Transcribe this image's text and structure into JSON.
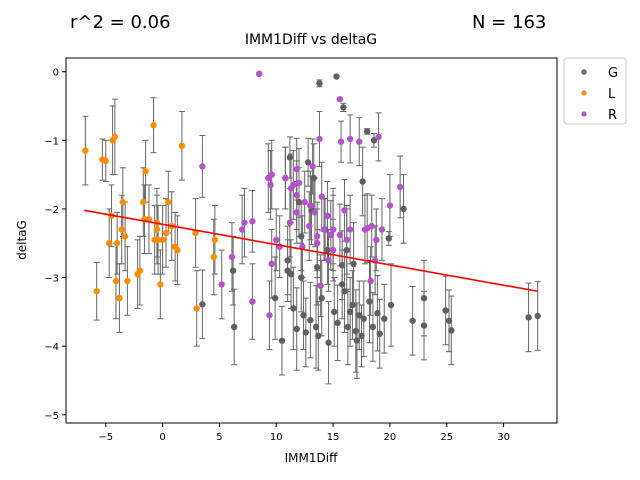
{
  "header": {
    "r2": "r^2 = 0.06",
    "n": "N = 163"
  },
  "chart_data": {
    "type": "scatter",
    "title": "IMM1Diff vs deltaG",
    "xlabel": "IMM1Diff",
    "ylabel": "deltaG",
    "xlim": [
      -8.5,
      34.7
    ],
    "ylim": [
      -5.12,
      0.2
    ],
    "xticks": [
      -5,
      0,
      5,
      10,
      15,
      20,
      25,
      30
    ],
    "yticks": [
      0,
      -1,
      -2,
      -3,
      -4,
      -5
    ],
    "grid": false,
    "legend_position": "outside-right",
    "colors": {
      "G": "#5f5f5f",
      "L": "#ff8c00",
      "R": "#b452cd",
      "fit": "#ff0000",
      "errorbar": "#666666"
    },
    "fit_line": {
      "x": [
        -6.9,
        33.0
      ],
      "y": [
        -2.02,
        -3.2
      ]
    },
    "series": [
      {
        "name": "G",
        "points": [
          [
            8.5,
            -0.03,
            0
          ],
          [
            13.8,
            -0.17,
            0.05
          ],
          [
            15.3,
            -0.07,
            0
          ],
          [
            15.9,
            -0.52,
            0.06
          ],
          [
            18.0,
            -0.87,
            0.04
          ],
          [
            18.6,
            -1.0,
            0.1
          ],
          [
            11.2,
            -1.25,
            0.3
          ],
          [
            12.8,
            -1.32,
            0.35
          ],
          [
            13.3,
            -1.55,
            0.5
          ],
          [
            10.8,
            -1.55,
            0.45
          ],
          [
            17.6,
            -1.6,
            0.5
          ],
          [
            12.0,
            -1.9,
            0.5
          ],
          [
            13.1,
            -2.02,
            0.5
          ],
          [
            19.9,
            -2.43,
            0.1
          ],
          [
            21.2,
            -2.0,
            0.5
          ],
          [
            15.0,
            -2.3,
            0.6
          ],
          [
            16.2,
            -2.6,
            0.6
          ],
          [
            12.2,
            -2.4,
            0.5
          ],
          [
            14.5,
            -2.6,
            0.5
          ],
          [
            11.0,
            -2.75,
            0.5
          ],
          [
            16.8,
            -2.8,
            0.6
          ],
          [
            15.8,
            -2.82,
            0.5
          ],
          [
            13.6,
            -2.85,
            0.55
          ],
          [
            11.3,
            -2.95,
            0.5
          ],
          [
            6.2,
            -2.9,
            0.5
          ],
          [
            3.5,
            -3.39,
            0.5
          ],
          [
            6.3,
            -3.72,
            0.55
          ],
          [
            9.9,
            -3.3,
            0.6
          ],
          [
            10.5,
            -3.92,
            0.5
          ],
          [
            11.5,
            -3.45,
            0.6
          ],
          [
            12.4,
            -3.55,
            0.5
          ],
          [
            13.0,
            -3.62,
            0.55
          ],
          [
            13.5,
            -3.72,
            0.6
          ],
          [
            14.0,
            -3.3,
            0.55
          ],
          [
            14.6,
            -3.95,
            0.6
          ],
          [
            15.1,
            -3.5,
            0.5
          ],
          [
            15.4,
            -3.66,
            0.55
          ],
          [
            16.0,
            -3.2,
            0.6
          ],
          [
            16.3,
            -3.72,
            0.55
          ],
          [
            16.7,
            -3.4,
            0.5
          ],
          [
            17.0,
            -3.78,
            0.6
          ],
          [
            17.3,
            -3.55,
            0.5
          ],
          [
            17.7,
            -3.6,
            0.55
          ],
          [
            18.2,
            -3.35,
            0.6
          ],
          [
            18.5,
            -3.72,
            0.5
          ],
          [
            18.9,
            -3.52,
            0.55
          ],
          [
            19.1,
            -3.82,
            0.5
          ],
          [
            20.1,
            -3.4,
            0.6
          ],
          [
            22.0,
            -3.63,
            0.5
          ],
          [
            23.0,
            -3.3,
            0.55
          ],
          [
            23.0,
            -3.7,
            0.5
          ],
          [
            24.9,
            -3.48,
            0.5
          ],
          [
            25.2,
            -3.63,
            0.45
          ],
          [
            25.4,
            -3.77,
            0.5
          ],
          [
            32.2,
            -3.58,
            0.5
          ],
          [
            33.0,
            -3.56,
            0.5
          ],
          [
            11.0,
            -2.9,
            0.45
          ],
          [
            12.6,
            -3.8,
            0.5
          ],
          [
            13.7,
            -3.85,
            0.5
          ],
          [
            17.1,
            -3.92,
            0.55
          ],
          [
            11.8,
            -3.75,
            0.6
          ],
          [
            16.5,
            -3.5,
            0.5
          ],
          [
            15.8,
            -3.1,
            0.5
          ],
          [
            12.2,
            -3.0,
            0.5
          ],
          [
            14.3,
            -2.3,
            0.45
          ],
          [
            17.5,
            -3.85,
            0.45
          ],
          [
            19.5,
            -3.6,
            0.5
          ]
        ]
      },
      {
        "name": "L",
        "points": [
          [
            -6.8,
            -1.15,
            0.5
          ],
          [
            -5.8,
            -3.2,
            0.42
          ],
          [
            -5.3,
            -1.28,
            0.3
          ],
          [
            -5.0,
            -1.3,
            0.3
          ],
          [
            -4.7,
            -2.5,
            0.5
          ],
          [
            -4.4,
            -1.0,
            0.5
          ],
          [
            -4.2,
            -0.95,
            0.55
          ],
          [
            -4.5,
            -2.1,
            0.45
          ],
          [
            -4.1,
            -3.05,
            0.55
          ],
          [
            -4.0,
            -2.5,
            0.45
          ],
          [
            -3.8,
            -3.3,
            0.5
          ],
          [
            -3.5,
            -1.9,
            0.5
          ],
          [
            -3.6,
            -2.3,
            0.5
          ],
          [
            -3.3,
            -2.4,
            0.5
          ],
          [
            -3.1,
            -3.05,
            0.5
          ],
          [
            -2.2,
            -2.95,
            0.5
          ],
          [
            -2.0,
            -2.9,
            0.5
          ],
          [
            -1.6,
            -2.15,
            0.5
          ],
          [
            -1.5,
            -1.45,
            0.45
          ],
          [
            -1.7,
            -1.9,
            0.5
          ],
          [
            -1.2,
            -2.15,
            0.5
          ],
          [
            -0.8,
            -0.78,
            0.4
          ],
          [
            -0.7,
            -2.45,
            0.5
          ],
          [
            -0.5,
            -2.3,
            0.5
          ],
          [
            -0.4,
            -2.45,
            0.5
          ],
          [
            -0.2,
            -3.1,
            0.5
          ],
          [
            0.0,
            -2.45,
            0.5
          ],
          [
            0.5,
            -1.9,
            0.45
          ],
          [
            0.3,
            -2.35,
            0.5
          ],
          [
            0.8,
            -2.25,
            0.5
          ],
          [
            1.1,
            -2.55,
            0.5
          ],
          [
            1.3,
            -2.6,
            0.5
          ],
          [
            1.7,
            -1.08,
            0.5
          ],
          [
            2.9,
            -2.35,
            0.5
          ],
          [
            3.0,
            -3.45,
            0.55
          ],
          [
            4.5,
            -2.7,
            0.55
          ],
          [
            4.6,
            -2.45,
            0.5
          ],
          [
            -0.5,
            -2.2,
            0.5
          ]
        ]
      },
      {
        "name": "R",
        "points": [
          [
            8.5,
            -0.03,
            0
          ],
          [
            15.6,
            -0.4,
            0
          ],
          [
            16.5,
            -0.98,
            0.35
          ],
          [
            15.7,
            -1.02,
            0.3
          ],
          [
            17.3,
            -1.02,
            0.35
          ],
          [
            19.0,
            -0.95,
            0.35
          ],
          [
            13.8,
            -0.98,
            0.4
          ],
          [
            13.2,
            -1.38,
            0.4
          ],
          [
            11.8,
            -1.42,
            0.45
          ],
          [
            3.5,
            -1.38,
            0.45
          ],
          [
            9.3,
            -1.55,
            0.5
          ],
          [
            9.6,
            -1.5,
            0.5
          ],
          [
            9.5,
            -1.65,
            0.5
          ],
          [
            10.8,
            -1.55,
            0.45
          ],
          [
            11.3,
            -1.7,
            0.5
          ],
          [
            11.5,
            -1.65,
            0.5
          ],
          [
            12.0,
            -1.62,
            0.5
          ],
          [
            11.8,
            -1.8,
            0.5
          ],
          [
            13.0,
            -1.95,
            0.5
          ],
          [
            13.4,
            -2.05,
            0.5
          ],
          [
            14.0,
            -1.82,
            0.5
          ],
          [
            14.5,
            -2.1,
            0.5
          ],
          [
            15.0,
            -2.3,
            0.5
          ],
          [
            15.6,
            -2.38,
            0.45
          ],
          [
            16.0,
            -2.02,
            0.45
          ],
          [
            16.5,
            -2.3,
            0.5
          ],
          [
            18.0,
            -2.28,
            0.5
          ],
          [
            18.4,
            -2.25,
            0.45
          ],
          [
            18.8,
            -2.45,
            0.45
          ],
          [
            20.0,
            -1.95,
            0.45
          ],
          [
            20.9,
            -1.68,
            0.45
          ],
          [
            7.0,
            -2.3,
            0.5
          ],
          [
            7.2,
            -2.2,
            0.5
          ],
          [
            7.9,
            -2.18,
            0.45
          ],
          [
            9.6,
            -2.8,
            0.5
          ],
          [
            11.2,
            -2.2,
            0.5
          ],
          [
            12.3,
            -2.55,
            0.45
          ],
          [
            12.9,
            -2.25,
            0.5
          ],
          [
            13.6,
            -2.4,
            0.5
          ],
          [
            13.9,
            -3.12,
            0.45
          ],
          [
            14.8,
            -2.38,
            0.5
          ],
          [
            15.0,
            -2.6,
            0.45
          ],
          [
            14.6,
            -2.75,
            0.45
          ],
          [
            18.7,
            -2.75,
            0.5
          ],
          [
            17.8,
            -2.3,
            0.5
          ],
          [
            18.3,
            -3.05,
            0.5
          ],
          [
            9.4,
            -3.55,
            0.5
          ],
          [
            7.9,
            -3.35,
            0.55
          ],
          [
            6.1,
            -2.7,
            0.5
          ],
          [
            11.8,
            -2.05,
            0.45
          ],
          [
            13.6,
            -2.5,
            0.5
          ],
          [
            10.3,
            -2.55,
            0.45
          ],
          [
            14.2,
            -2.3,
            0.45
          ],
          [
            16.2,
            -2.45,
            0.5
          ],
          [
            19.3,
            -2.3,
            0.45
          ],
          [
            12.5,
            -1.9,
            0.45
          ],
          [
            10.0,
            -2.45,
            0.45
          ],
          [
            5.2,
            -3.1,
            0.5
          ]
        ]
      }
    ]
  }
}
